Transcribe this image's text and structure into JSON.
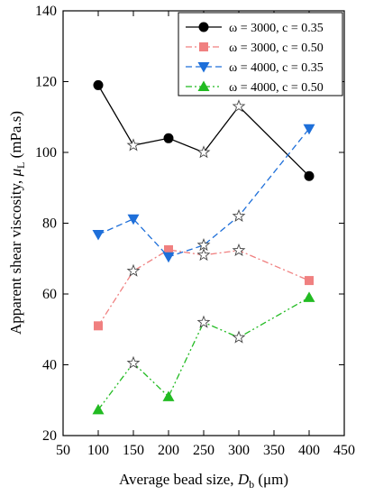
{
  "chart_data": {
    "type": "line",
    "xlabel": {
      "prefix": "Average bead size, ",
      "symbol": "D",
      "sub": "b",
      "unit": " (μm)"
    },
    "ylabel": {
      "prefix": "Apparent shear viscosity, ",
      "symbol": "μ",
      "sub": "L",
      "unit": " (mPa.s)"
    },
    "xlim": [
      50,
      450
    ],
    "ylim": [
      20,
      140
    ],
    "xticks": [
      50,
      100,
      150,
      200,
      250,
      300,
      350,
      400,
      450
    ],
    "yticks": [
      20,
      40,
      60,
      80,
      100,
      120,
      140
    ],
    "legend_position": "top-right",
    "series": [
      {
        "name": "ω = 3000, c = 0.35",
        "color": "#000000",
        "dash": "solid",
        "marker": "circle",
        "x": [
          100,
          150,
          200,
          250,
          300,
          400
        ],
        "y": [
          119,
          102,
          104,
          100,
          113,
          93.3
        ],
        "highlight": [
          false,
          true,
          false,
          true,
          true,
          false
        ]
      },
      {
        "name": "ω = 3000, c = 0.50",
        "color": "#f08080",
        "dash": "dashdot",
        "marker": "square",
        "x": [
          100,
          150,
          200,
          250,
          300,
          400
        ],
        "y": [
          51,
          66.5,
          72.5,
          71,
          72.3,
          63.8
        ],
        "highlight": [
          false,
          true,
          false,
          true,
          true,
          false
        ]
      },
      {
        "name": "ω = 4000, c = 0.35",
        "color": "#1e6fd9",
        "dash": "dash",
        "marker": "triangle-down",
        "x": [
          100,
          150,
          200,
          250,
          300,
          400
        ],
        "y": [
          76.8,
          81.2,
          70.5,
          73.8,
          82,
          106.7
        ],
        "highlight": [
          false,
          false,
          false,
          true,
          true,
          false
        ]
      },
      {
        "name": "ω = 4000, c = 0.50",
        "color": "#22bb22",
        "dash": "dashdotdot",
        "marker": "triangle-up",
        "x": [
          100,
          150,
          200,
          250,
          300,
          400
        ],
        "y": [
          27.3,
          40.5,
          31,
          52,
          47.7,
          59
        ],
        "highlight": [
          false,
          true,
          false,
          true,
          true,
          false
        ]
      }
    ]
  }
}
